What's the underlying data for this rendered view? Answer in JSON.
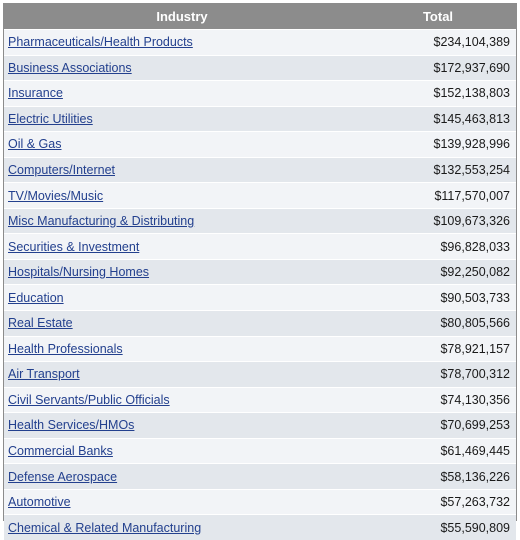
{
  "table": {
    "headers": {
      "industry": "Industry",
      "total": "Total"
    },
    "rows": [
      {
        "industry": "Pharmaceuticals/Health Products",
        "total": "$234,104,389"
      },
      {
        "industry": "Business Associations",
        "total": "$172,937,690"
      },
      {
        "industry": "Insurance",
        "total": "$152,138,803"
      },
      {
        "industry": "Electric Utilities",
        "total": "$145,463,813"
      },
      {
        "industry": "Oil & Gas",
        "total": "$139,928,996"
      },
      {
        "industry": "Computers/Internet",
        "total": "$132,553,254"
      },
      {
        "industry": "TV/Movies/Music",
        "total": "$117,570,007"
      },
      {
        "industry": "Misc Manufacturing & Distributing",
        "total": "$109,673,326"
      },
      {
        "industry": "Securities & Investment",
        "total": "$96,828,033"
      },
      {
        "industry": "Hospitals/Nursing Homes",
        "total": "$92,250,082"
      },
      {
        "industry": "Education",
        "total": "$90,503,733"
      },
      {
        "industry": "Real Estate",
        "total": "$80,805,566"
      },
      {
        "industry": "Health Professionals",
        "total": "$78,921,157"
      },
      {
        "industry": "Air Transport",
        "total": "$78,700,312"
      },
      {
        "industry": "Civil Servants/Public Officials",
        "total": "$74,130,356"
      },
      {
        "industry": "Health Services/HMOs",
        "total": "$70,699,253"
      },
      {
        "industry": "Commercial Banks",
        "total": "$61,469,445"
      },
      {
        "industry": "Defense Aerospace",
        "total": "$58,136,226"
      },
      {
        "industry": "Automotive",
        "total": "$57,263,732"
      },
      {
        "industry": "Chemical & Related Manufacturing",
        "total": "$55,590,809"
      }
    ]
  }
}
